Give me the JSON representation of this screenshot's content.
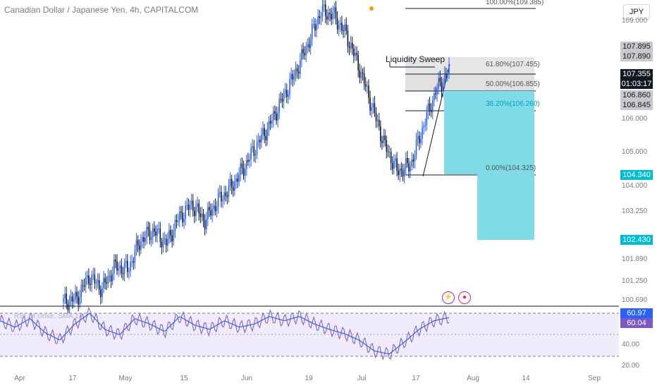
{
  "title": "Canadian Dollar / Japanese Yen, 4h, CAPITALCOM",
  "currency": "JPY",
  "annotation": "Liquidity Sweep",
  "price_axis": [
    "109.000",
    "106.000",
    "105.000",
    "104.000",
    "103.250",
    "101.890",
    "101.250",
    "100.690"
  ],
  "rsi_axis": [
    "40.00",
    "20.00"
  ],
  "tags": {
    "t1": "107.895",
    "t2": "107.890",
    "t3": "107.355",
    "t4": "01:03:17",
    "t5": "106.860",
    "t6": "106.845",
    "t7": "104.340",
    "t8": "102.430",
    "t9": "60.97",
    "t10": "60.04"
  },
  "fib": {
    "f100": "100.00%(109.385)",
    "f618": "61.80%(107.455)",
    "f50": "50.00%(106.855)",
    "f382": "38.20%(106.260)",
    "f0": "0.00%(104.325)"
  },
  "rsi_label": "RSI 14 close, SMA 14",
  "x_axis": [
    "Apr",
    "17",
    "May",
    "15",
    "Jun",
    "19",
    "Jul",
    "17",
    "Aug",
    "14",
    "Sep"
  ],
  "colors": {
    "up": "#2962ff",
    "down": "#131722",
    "target": "#00bcd4",
    "rsi": "#7e57c2"
  },
  "icons": [
    "lightning-icon",
    "record-icon"
  ],
  "chart_data": {
    "type": "line",
    "series": [
      {
        "values": [
          100.4,
          100.5,
          101.2,
          100.8,
          101.5,
          101.4,
          102.3,
          102.6,
          102.2,
          103.0,
          103.4,
          102.9,
          103.5,
          103.9,
          104.5,
          105.2,
          105.8,
          106.6,
          107.4,
          108.3,
          109.3,
          109.2,
          108.6,
          107.6,
          106.4,
          105.2,
          104.4,
          104.6,
          105.8,
          106.9,
          107.5
        ]
      }
    ],
    "rsi": [
      58,
      52,
      60,
      47,
      40,
      55,
      65,
      50,
      45,
      60,
      55,
      48,
      62,
      54,
      50,
      58,
      52,
      55,
      62,
      58,
      62,
      55,
      50,
      46,
      40,
      30,
      27,
      38,
      50,
      58,
      61
    ]
  }
}
